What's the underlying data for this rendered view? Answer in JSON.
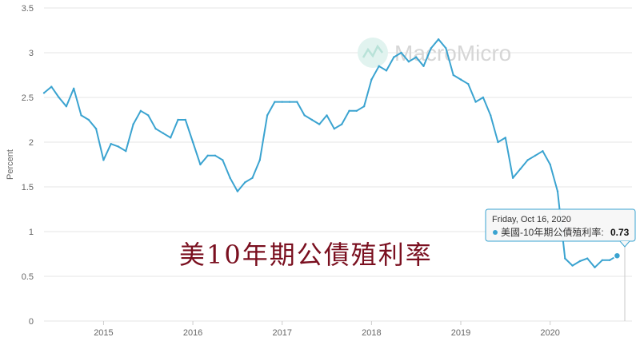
{
  "brand": {
    "watermark": "MacroMicro"
  },
  "overlay_title": "美10年期公債殖利率",
  "tooltip": {
    "date": "Friday, Oct 16, 2020",
    "series_label": "美國-10年期公債殖利率:",
    "value_text": "0.73"
  },
  "colors": {
    "series": "#3aa3d0",
    "grid": "#e6e6e6",
    "overlay_title": "#7a0f1f",
    "watermark": "#d6d6d6"
  },
  "chart_data": {
    "type": "line",
    "title": "",
    "xlabel": "",
    "ylabel": "Percent",
    "ylim": [
      0,
      3.5
    ],
    "yticks": [
      0,
      0.5,
      1,
      1.5,
      2,
      2.5,
      3,
      3.5
    ],
    "ytick_labels": [
      "0",
      "0.5",
      "1",
      "1.5",
      "2",
      "2.5",
      "3",
      "3.5"
    ],
    "xlim": [
      "2014-05",
      "2020-12"
    ],
    "xticks": [
      "2015",
      "2016",
      "2017",
      "2018",
      "2019",
      "2020"
    ],
    "grid": true,
    "legend": "none",
    "series": [
      {
        "name": "美國-10年期公債殖利率",
        "x": [
          "2014-05",
          "2014-06",
          "2014-07",
          "2014-08",
          "2014-09",
          "2014-10",
          "2014-11",
          "2014-12",
          "2015-01",
          "2015-02",
          "2015-03",
          "2015-04",
          "2015-05",
          "2015-06",
          "2015-07",
          "2015-08",
          "2015-09",
          "2015-10",
          "2015-11",
          "2015-12",
          "2016-01",
          "2016-02",
          "2016-03",
          "2016-04",
          "2016-05",
          "2016-06",
          "2016-07",
          "2016-08",
          "2016-09",
          "2016-10",
          "2016-11",
          "2016-12",
          "2017-01",
          "2017-02",
          "2017-03",
          "2017-04",
          "2017-05",
          "2017-06",
          "2017-07",
          "2017-08",
          "2017-09",
          "2017-10",
          "2017-11",
          "2017-12",
          "2018-01",
          "2018-02",
          "2018-03",
          "2018-04",
          "2018-05",
          "2018-06",
          "2018-07",
          "2018-08",
          "2018-09",
          "2018-10",
          "2018-11",
          "2018-12",
          "2019-01",
          "2019-02",
          "2019-03",
          "2019-04",
          "2019-05",
          "2019-06",
          "2019-07",
          "2019-08",
          "2019-09",
          "2019-10",
          "2019-11",
          "2019-12",
          "2020-01",
          "2020-02",
          "2020-03",
          "2020-04",
          "2020-05",
          "2020-06",
          "2020-07",
          "2020-08",
          "2020-09",
          "2020-10"
        ],
        "values": [
          2.55,
          2.62,
          2.5,
          2.4,
          2.6,
          2.3,
          2.25,
          2.15,
          1.8,
          1.98,
          1.95,
          1.9,
          2.2,
          2.35,
          2.3,
          2.15,
          2.1,
          2.05,
          2.25,
          2.25,
          2.0,
          1.75,
          1.85,
          1.85,
          1.8,
          1.6,
          1.45,
          1.55,
          1.6,
          1.8,
          2.3,
          2.45,
          2.45,
          2.45,
          2.45,
          2.3,
          2.25,
          2.2,
          2.3,
          2.15,
          2.2,
          2.35,
          2.35,
          2.4,
          2.7,
          2.85,
          2.8,
          2.95,
          3.0,
          2.9,
          2.95,
          2.85,
          3.05,
          3.15,
          3.05,
          2.75,
          2.7,
          2.65,
          2.45,
          2.5,
          2.3,
          2.0,
          2.05,
          1.6,
          1.7,
          1.8,
          1.85,
          1.9,
          1.75,
          1.45,
          0.7,
          0.62,
          0.67,
          0.7,
          0.6,
          0.68,
          0.68,
          0.73
        ]
      }
    ]
  }
}
